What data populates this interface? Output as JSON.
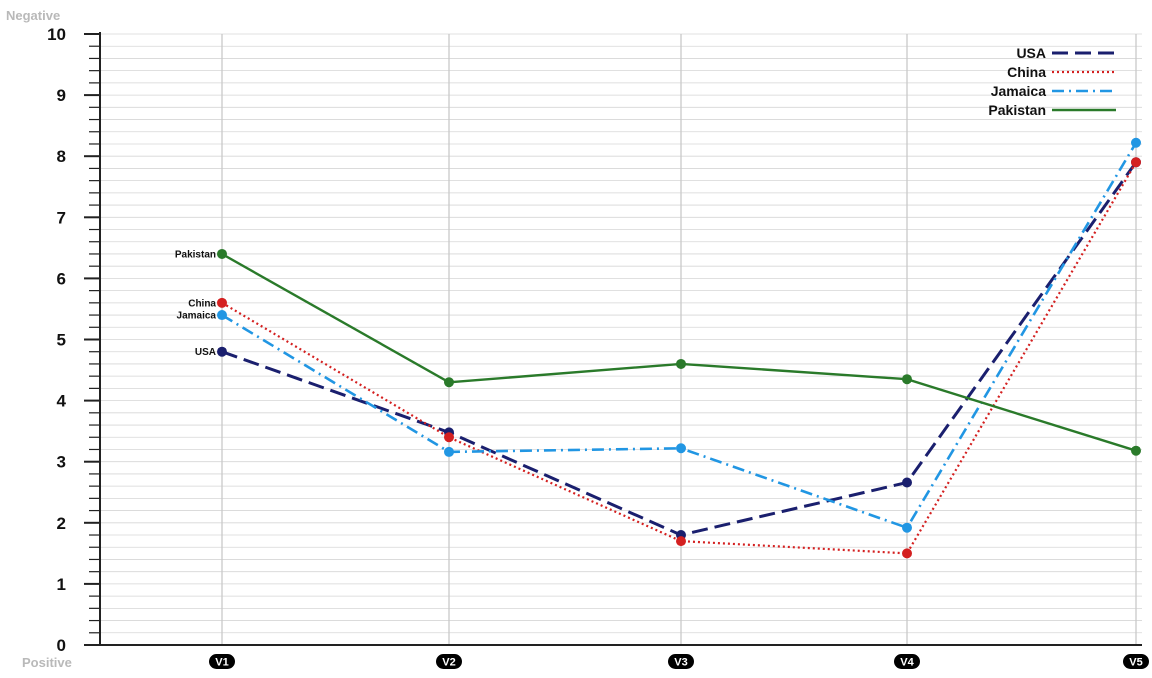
{
  "chart_data": {
    "type": "line",
    "categories": [
      "V1",
      "V2",
      "V3",
      "V4",
      "V5"
    ],
    "ylim": [
      0,
      10
    ],
    "yticks": [
      0,
      1,
      2,
      3,
      4,
      5,
      6,
      7,
      8,
      9,
      10
    ],
    "grid": true,
    "legend_position": "top-right",
    "top_label": "Negative",
    "bottom_label": "Positive",
    "series": [
      {
        "name": "USA",
        "values": [
          4.8,
          3.48,
          1.8,
          2.66,
          7.9
        ],
        "color": "#1a1f6e",
        "style": "dashed"
      },
      {
        "name": "China",
        "values": [
          5.6,
          3.4,
          1.7,
          1.5,
          7.9
        ],
        "color": "#d42020",
        "style": "dotted"
      },
      {
        "name": "Jamaica",
        "values": [
          5.4,
          3.16,
          3.22,
          1.92,
          8.22
        ],
        "color": "#2196e3",
        "style": "dashdot"
      },
      {
        "name": "Pakistan",
        "values": [
          6.4,
          4.3,
          4.6,
          4.35,
          3.18
        ],
        "color": "#2a7a2a",
        "style": "solid"
      }
    ]
  }
}
